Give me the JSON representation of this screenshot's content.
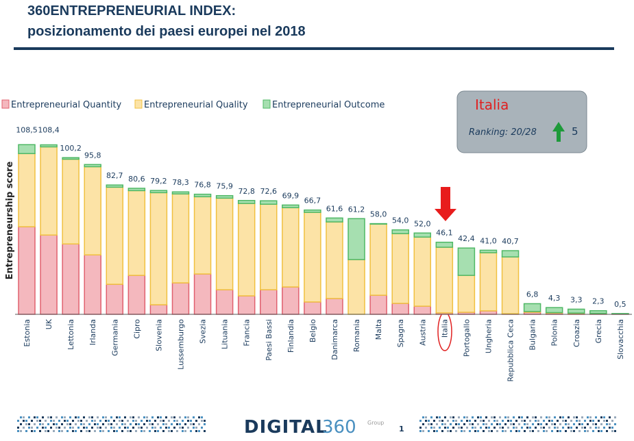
{
  "chart_data": {
    "type": "stacked-bar",
    "title": "360ENTREPRENEURIAL INDEX:",
    "subtitle": "posizionamento dei paesi europei nel 2018",
    "y_label": "Entrepreneurship score",
    "categories": [
      "Estonia",
      "UK",
      "Lettonia",
      "Irlanda",
      "Germania",
      "Cipro",
      "Slovenia",
      "Lussemburgo",
      "Svezia",
      "Lituania",
      "Francia",
      "Paesi Bassi",
      "Finlandia",
      "Belgio",
      "Danimarca",
      "Romania",
      "Malta",
      "Spagna",
      "Austria",
      "Italia",
      "Portogallo",
      "Ungheria",
      "Repubblica Ceca",
      "Bulgaria",
      "Polonia",
      "Croazia",
      "Grecia",
      "Slovacchia"
    ],
    "series": [
      {
        "name": "Entrepreneurial Quantity",
        "color": "#f4b8be",
        "stroke": "#e0606e",
        "values": [
          56,
          50.7,
          45,
          38,
          19.2,
          24.9,
          6.1,
          20.1,
          25.8,
          15.7,
          11.8,
          15.7,
          17.5,
          7.9,
          10.1,
          0,
          12.2,
          7,
          5.2,
          0.9,
          1.3,
          2.2,
          0.4,
          1.3,
          0.8,
          0.6,
          0.4,
          0.2
        ]
      },
      {
        "name": "Entrepreneurial Quality",
        "color": "#fce3a6",
        "stroke": "#f0c040",
        "values": [
          46.8,
          56.4,
          54.2,
          56.4,
          62.1,
          54.2,
          71.7,
          56.9,
          49.4,
          58.6,
          59.1,
          54.7,
          50.7,
          57.3,
          49,
          35,
          45.5,
          44.6,
          44.2,
          42,
          23.6,
          37.2,
          36.3,
          0.5,
          0.3,
          0.2,
          0.2,
          0.1
        ]
      },
      {
        "name": "Entrepreneurial Outcome",
        "color": "#a6dfb0",
        "stroke": "#4fb865",
        "values": [
          5.7,
          1.3,
          1,
          1.4,
          1.4,
          1.5,
          1.4,
          1.3,
          1.6,
          1.6,
          1.9,
          2.2,
          1.7,
          1.5,
          2.5,
          26.2,
          0.3,
          2.4,
          2.6,
          3.2,
          17.5,
          1.6,
          4,
          5,
          3.2,
          2.5,
          1.7,
          0.2
        ]
      }
    ],
    "total_labels": [
      "108,5",
      "108,4",
      "100,2",
      "95,8",
      "82,7",
      "80,6",
      "79,2",
      "78,3",
      "76,8",
      "75,9",
      "72,8",
      "72,6",
      "69,9",
      "66,7",
      "61,6",
      "61,2",
      "58,0",
      "54,0",
      "52,0",
      "46,1",
      "42,4",
      "41,0",
      "40,7",
      "6,8",
      "4,3",
      "3,3",
      "2,3",
      "0,5"
    ],
    "ylim": [
      0,
      120
    ],
    "highlight": {
      "country": "Italia",
      "ranking": "Ranking: 20/28",
      "change": "5"
    }
  },
  "footer": {
    "brand": "DIGITAL",
    "brand_number": "360",
    "group": "Group",
    "page": "1"
  }
}
